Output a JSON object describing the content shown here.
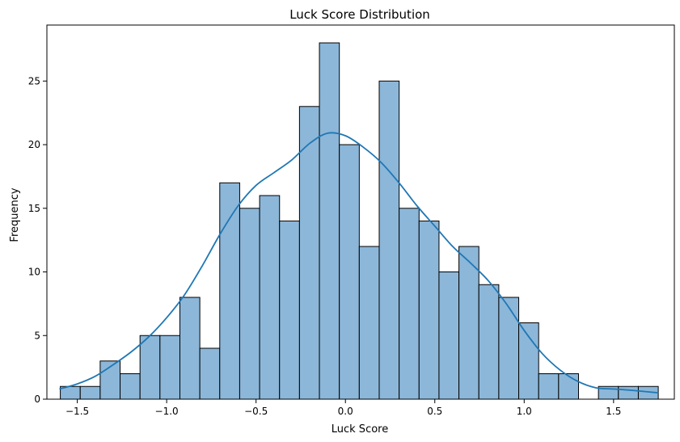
{
  "chart_data": {
    "type": "histogram",
    "title": "Luck Score Distribution",
    "xlabel": "Luck Score",
    "ylabel": "Frequency",
    "xlim": [
      -1.67,
      1.84
    ],
    "ylim": [
      0,
      29.4
    ],
    "xticks": [
      -1.5,
      -1.0,
      -0.5,
      0.0,
      0.5,
      1.0,
      1.5
    ],
    "xtick_labels": [
      "−1.5",
      "−1.0",
      "−0.5",
      "0.0",
      "0.5",
      "1.0",
      "1.5"
    ],
    "yticks": [
      0,
      5,
      10,
      15,
      20,
      25
    ],
    "ytick_labels": [
      "0",
      "5",
      "10",
      "15",
      "20",
      "25"
    ],
    "bin_start": -1.595,
    "bin_width": 0.1115,
    "counts": [
      1,
      1,
      3,
      2,
      5,
      5,
      8,
      4,
      17,
      15,
      16,
      14,
      23,
      28,
      20,
      12,
      25,
      15,
      14,
      10,
      12,
      9,
      8,
      6,
      2,
      2,
      0,
      1,
      1,
      1
    ],
    "kde": {
      "x": [
        -1.6,
        -1.5,
        -1.4,
        -1.3,
        -1.2,
        -1.1,
        -1.0,
        -0.9,
        -0.8,
        -0.7,
        -0.6,
        -0.5,
        -0.4,
        -0.3,
        -0.2,
        -0.1,
        0.0,
        0.1,
        0.2,
        0.3,
        0.4,
        0.5,
        0.6,
        0.7,
        0.8,
        0.9,
        1.0,
        1.1,
        1.2,
        1.3,
        1.4,
        1.5,
        1.6,
        1.75
      ],
      "y": [
        0.8,
        1.2,
        1.8,
        2.7,
        3.7,
        4.9,
        6.4,
        8.2,
        10.5,
        13.0,
        15.2,
        16.8,
        17.8,
        18.8,
        20.1,
        20.9,
        20.7,
        19.8,
        18.6,
        17.0,
        15.2,
        13.6,
        12.0,
        10.7,
        9.3,
        7.5,
        5.4,
        3.6,
        2.3,
        1.4,
        0.9,
        0.8,
        0.7,
        0.5
      ]
    },
    "grid": false,
    "colors": {
      "bar_fill": "#8cb7d9",
      "bar_edge": "#000000",
      "kde_line": "#1f77b4"
    }
  }
}
